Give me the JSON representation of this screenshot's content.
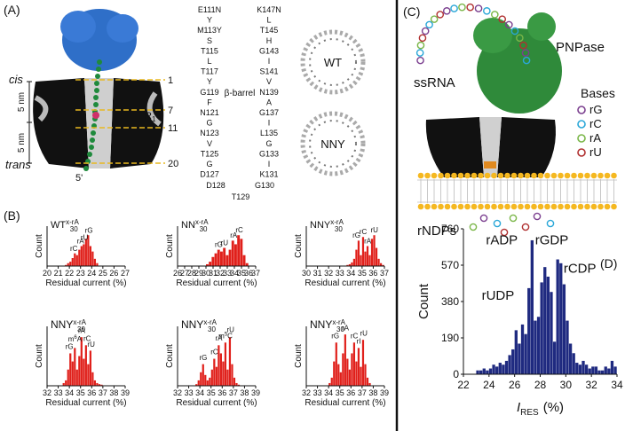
{
  "panel_a": {
    "label": "(A)",
    "cis": "cis",
    "trans": "trans",
    "scale_top": "5 nm",
    "scale_bottom": "5 nm",
    "positions": [
      "1",
      "7",
      "11",
      "20"
    ],
    "r1": "R",
    "r1_sub": "1",
    "five_prime": "5'",
    "barrel_label": "β-barrel",
    "seq_left": [
      {
        "text": "E111N",
        "color": "#d42020"
      },
      "Y",
      {
        "text": "M113Y",
        "color": "#d42020"
      },
      "S",
      "T115",
      "L",
      "T117",
      "Y",
      "G119",
      "F",
      "N121",
      "G",
      "N123",
      "V",
      "T125",
      "G",
      "D127"
    ],
    "seq_bottom": [
      "D128",
      "T129",
      "G130"
    ],
    "seq_right": [
      {
        "text": "K147N",
        "color": "#d42020"
      },
      "L",
      "T145",
      "H",
      "G143",
      "I",
      "S141",
      "V",
      "N139",
      "A",
      "G137",
      "I",
      "L135",
      "G",
      "G133",
      "I",
      "K131"
    ],
    "pore_wt": "WT",
    "pore_nny": "NNY"
  },
  "panel_b": {
    "label": "(B)"
  },
  "panel_c": {
    "label": "(C)",
    "ssrna": "ssRNA",
    "enzyme": "PNPase",
    "bases_title": "Bases",
    "bases": [
      {
        "name": "rG",
        "color": "#7b3f8f"
      },
      {
        "name": "rC",
        "color": "#2aa7d8"
      },
      {
        "name": "rA",
        "color": "#7ab648"
      },
      {
        "name": "rU",
        "color": "#b03030"
      }
    ],
    "products": "rNDPs"
  },
  "panel_d": {
    "label": "(D)"
  },
  "chart_data": [
    {
      "type": "histogram",
      "title": "WT",
      "title_sup": "x-rA",
      "title_sub": "30",
      "xlabel": "Residual current (%)",
      "ylabel": "Count",
      "color": "#e0201b",
      "bins": [
        21.6,
        21.8,
        22.0,
        22.2,
        22.4,
        22.6,
        22.8,
        23.0,
        23.2,
        23.4,
        23.6,
        23.8,
        24.0,
        24.2,
        24.4,
        24.6
      ],
      "counts": [
        3,
        8,
        12,
        22,
        35,
        30,
        45,
        55,
        60,
        75,
        85,
        55,
        40,
        20,
        8
      ],
      "xlim": [
        20,
        27
      ],
      "xticks": [
        20,
        21,
        22,
        23,
        24,
        25,
        26,
        27
      ],
      "ylim": [
        0,
        110
      ],
      "annotations": [
        {
          "text": "rC",
          "x": 22.4,
          "y": 42,
          "color": "#111"
        },
        {
          "text": "rA",
          "x": 23.0,
          "y": 62,
          "color": "#111"
        },
        {
          "text": "rU",
          "x": 23.35,
          "y": 72,
          "color": "#111"
        },
        {
          "text": "rG",
          "x": 23.75,
          "y": 92,
          "color": "#111"
        }
      ]
    },
    {
      "type": "histogram",
      "title": "NN",
      "title_sup": "x-rA",
      "title_sub": "30",
      "xlabel": "Residual current (%)",
      "ylabel": "Count",
      "color": "#e0201b",
      "bins": [
        30.0,
        30.4,
        30.8,
        31.2,
        31.6,
        32.0,
        32.4,
        32.8,
        33.2,
        33.6,
        34.0,
        34.4,
        34.8,
        35.2,
        35.6,
        36.0
      ],
      "counts": [
        5,
        12,
        25,
        35,
        45,
        40,
        50,
        30,
        45,
        70,
        60,
        85,
        75,
        30,
        8
      ],
      "xlim": [
        26,
        37
      ],
      "xticks": [
        26,
        27,
        28,
        29,
        30,
        31,
        32,
        33,
        34,
        35,
        36,
        37
      ],
      "ylim": [
        0,
        110
      ],
      "annotations": [
        {
          "text": "rG",
          "x": 31.8,
          "y": 52,
          "color": "#111"
        },
        {
          "text": "rU",
          "x": 32.6,
          "y": 57,
          "color": "#111"
        },
        {
          "text": "rA",
          "x": 33.9,
          "y": 78,
          "color": "#111"
        },
        {
          "text": "rC",
          "x": 34.7,
          "y": 93,
          "color": "#111"
        }
      ]
    },
    {
      "type": "histogram",
      "title": "NNY",
      "title_sup": "x-rA",
      "title_sub": "30",
      "xlabel": "Residual current (%)",
      "ylabel": "Count",
      "color": "#e0201b",
      "bins": [
        33.6,
        33.8,
        34.0,
        34.2,
        34.4,
        34.6,
        34.8,
        35.0,
        35.2,
        35.4,
        35.6,
        35.8,
        36.0,
        36.2,
        36.4,
        36.6,
        36.8,
        37.0
      ],
      "counts": [
        3,
        5,
        10,
        20,
        45,
        70,
        30,
        80,
        40,
        55,
        30,
        75,
        85,
        50,
        20,
        8,
        3
      ],
      "xlim": [
        30,
        37
      ],
      "xticks": [
        30,
        31,
        32,
        33,
        34,
        35,
        36,
        37
      ],
      "ylim": [
        0,
        110
      ],
      "annotations": [
        {
          "text": "rG",
          "x": 34.5,
          "y": 78,
          "color": "#111"
        },
        {
          "text": "rC",
          "x": 35.1,
          "y": 88,
          "color": "#111"
        },
        {
          "text": "rA",
          "x": 35.5,
          "y": 62,
          "color": "#111"
        },
        {
          "text": "rU",
          "x": 36.1,
          "y": 93,
          "color": "#111"
        }
      ]
    },
    {
      "type": "histogram",
      "title": "NNY",
      "title_sup": "x-rA",
      "title_sub": "30",
      "xlabel": "Residual current (%)",
      "ylabel": "Count",
      "color": "#e0201b",
      "bins": [
        33.4,
        33.6,
        33.8,
        34.0,
        34.2,
        34.4,
        34.6,
        34.8,
        35.0,
        35.2,
        35.4,
        35.6,
        35.8,
        36.0,
        36.2,
        36.4,
        36.6,
        36.8,
        37.0
      ],
      "counts": [
        5,
        10,
        30,
        60,
        45,
        70,
        30,
        55,
        90,
        50,
        75,
        40,
        65,
        25,
        10,
        5,
        3,
        2
      ],
      "xlim": [
        32,
        39
      ],
      "xticks": [
        32,
        33,
        34,
        35,
        36,
        37,
        38,
        39
      ],
      "ylim": [
        0,
        110
      ],
      "annotations": [
        {
          "text": "rG",
          "x": 34.0,
          "y": 68,
          "color": "#111"
        },
        {
          "prefix": "m",
          "sup": "6",
          "text": "A",
          "x": 34.5,
          "y": 82,
          "color": "#e08a00"
        },
        {
          "text": "rA",
          "x": 35.1,
          "y": 98,
          "color": "#111"
        },
        {
          "text": "rC",
          "x": 35.6,
          "y": 83,
          "color": "#111"
        },
        {
          "text": "rU",
          "x": 35.95,
          "y": 72,
          "color": "#111"
        }
      ]
    },
    {
      "type": "histogram",
      "title": "NNY",
      "title_sup": "x-rA",
      "title_sub": "30",
      "xlabel": "Residual current (%)",
      "ylabel": "Count",
      "color": "#e0201b",
      "bins": [
        33.6,
        33.8,
        34.0,
        34.2,
        34.4,
        34.6,
        34.8,
        35.0,
        35.2,
        35.4,
        35.6,
        35.8,
        36.0,
        36.2,
        36.4,
        36.6,
        36.8,
        37.0,
        37.2,
        37.4,
        37.6
      ],
      "counts": [
        3,
        10,
        25,
        40,
        20,
        10,
        15,
        30,
        50,
        35,
        75,
        60,
        45,
        80,
        30,
        90,
        40,
        15,
        5,
        2
      ],
      "xlim": [
        32,
        39
      ],
      "xticks": [
        32,
        33,
        34,
        35,
        36,
        37,
        38,
        39
      ],
      "ylim": [
        0,
        110
      ],
      "annotations": [
        {
          "text": "rG",
          "x": 34.3,
          "y": 48,
          "color": "#111"
        },
        {
          "text": "rC",
          "x": 35.3,
          "y": 58,
          "color": "#111"
        },
        {
          "text": "rA",
          "x": 35.7,
          "y": 84,
          "color": "#111"
        },
        {
          "prefix": "m",
          "sup": "5",
          "text": "C",
          "x": 36.3,
          "y": 88,
          "color": "#8040a0"
        },
        {
          "text": "rU",
          "x": 36.75,
          "y": 99,
          "color": "#111"
        }
      ]
    },
    {
      "type": "histogram",
      "title": "NNY",
      "title_sup": "x-rA",
      "title_sub": "30",
      "xlabel": "Residual current (%)",
      "ylabel": "Count",
      "color": "#e0201b",
      "bins": [
        34.0,
        34.2,
        34.4,
        34.6,
        34.8,
        35.0,
        35.2,
        35.4,
        35.6,
        35.8,
        36.0,
        36.2,
        36.4,
        36.6,
        36.8,
        37.0,
        37.2,
        37.4,
        37.6,
        37.8
      ],
      "counts": [
        5,
        15,
        45,
        80,
        40,
        25,
        60,
        95,
        50,
        30,
        60,
        80,
        45,
        70,
        35,
        85,
        40,
        15,
        5
      ],
      "xlim": [
        32,
        39
      ],
      "xticks": [
        32,
        33,
        34,
        35,
        36,
        37,
        38,
        39
      ],
      "ylim": [
        0,
        110
      ],
      "annotations": [
        {
          "text": "rG",
          "x": 34.6,
          "y": 88,
          "color": "#111"
        },
        {
          "text": "rA",
          "x": 35.5,
          "y": 103,
          "color": "#111"
        },
        {
          "text": "rC",
          "x": 36.3,
          "y": 88,
          "color": "#111"
        },
        {
          "text": "rI",
          "x": 36.7,
          "y": 78,
          "color": "#30a0a0"
        },
        {
          "text": "rU",
          "x": 37.15,
          "y": 93,
          "color": "#111"
        }
      ]
    },
    {
      "type": "histogram",
      "xlabel": "I",
      "xlabel_sub": "RES",
      "xlabel_suffix": "(%)",
      "ylabel": "Count",
      "color": "#1f2a80",
      "bins": [
        23.0,
        23.25,
        23.5,
        23.75,
        24.0,
        24.25,
        24.5,
        24.75,
        25.0,
        25.25,
        25.5,
        25.75,
        26.0,
        26.25,
        26.5,
        26.75,
        27.0,
        27.25,
        27.5,
        27.75,
        28.0,
        28.25,
        28.5,
        28.75,
        29.0,
        29.25,
        29.5,
        29.75,
        30.0,
        30.25,
        30.5,
        30.75,
        31.0,
        31.25,
        31.5,
        31.75,
        32.0,
        32.25,
        32.5,
        32.75,
        33.0,
        33.25,
        33.5,
        33.75,
        34.0
      ],
      "counts": [
        20,
        20,
        30,
        20,
        30,
        50,
        40,
        60,
        50,
        70,
        100,
        130,
        230,
        160,
        260,
        210,
        450,
        700,
        280,
        300,
        480,
        560,
        510,
        430,
        170,
        600,
        580,
        470,
        280,
        160,
        110,
        60,
        50,
        70,
        50,
        30,
        40,
        40,
        20,
        20,
        40,
        30,
        70,
        40
      ],
      "xlim": [
        22,
        34
      ],
      "xticks": [
        22,
        24,
        26,
        28,
        30,
        32,
        34
      ],
      "ylim": [
        0,
        760
      ],
      "yticks": [
        0,
        190,
        380,
        570,
        760
      ],
      "annotations": [
        {
          "text": "rADP",
          "x": 25.0,
          "y": 680,
          "color": "#2a9ad8"
        },
        {
          "text": "rGDP",
          "x": 28.9,
          "y": 680,
          "color": "#e08a00"
        },
        {
          "text": "rCDP",
          "x": 31.1,
          "y": 530,
          "color": "#3a9a3a"
        },
        {
          "text": "rUDP",
          "x": 24.7,
          "y": 390,
          "color": "#c040b0"
        }
      ]
    }
  ]
}
